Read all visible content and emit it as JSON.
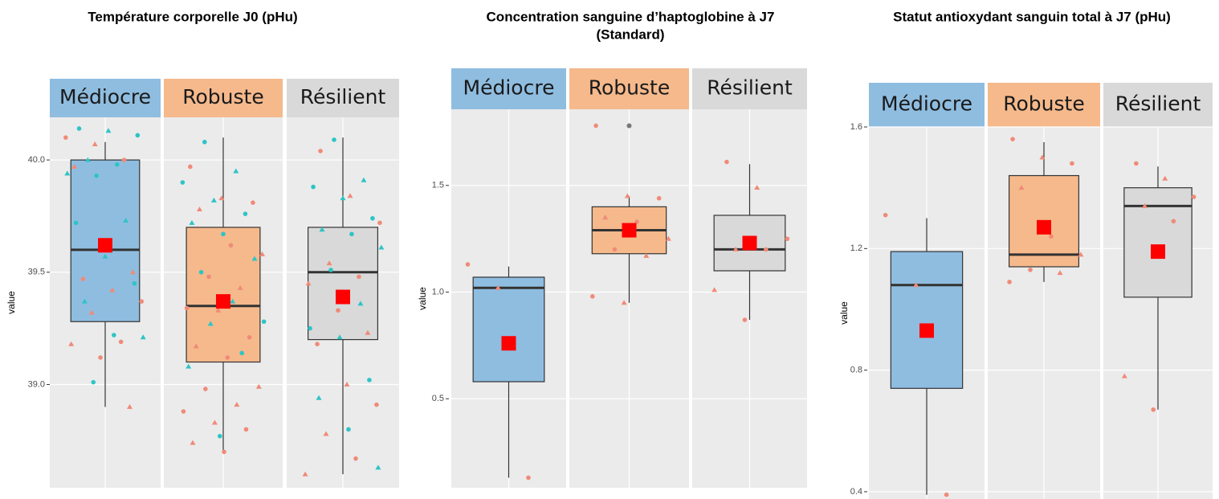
{
  "chart_data": [
    {
      "type": "box",
      "title": [
        "Température corporelle J0 (pHu)"
      ],
      "ylabel": "value",
      "ylim": [
        38.54,
        40.19
      ],
      "yticks": [
        {
          "value": 39.0,
          "label": "39.0"
        },
        {
          "value": 39.5,
          "label": "39.5"
        },
        {
          "value": 40.0,
          "label": "40.0"
        }
      ],
      "grid": true,
      "point_colors": [
        "#f08a78",
        "#2ec4c6"
      ],
      "mean_color": "#ff0000",
      "groups": [
        {
          "label": "Médiocre",
          "color": "#8fbde0",
          "whisker_low": 38.9,
          "q1": 39.28,
          "median": 39.6,
          "q3": 40.0,
          "whisker_high": 40.08,
          "mean": 39.62,
          "points_a": [
            40.1,
            40.07,
            40.0,
            39.97,
            39.6,
            39.5,
            39.47,
            39.42,
            39.37,
            39.32,
            39.19,
            39.18,
            39.12,
            38.9
          ],
          "points_b": [
            40.14,
            40.13,
            40.11,
            40.0,
            39.98,
            39.94,
            39.93,
            39.73,
            39.72,
            39.57,
            39.45,
            39.37,
            39.22,
            39.21,
            39.01
          ]
        },
        {
          "label": "Robuste",
          "color": "#f5b98c",
          "whisker_low": 38.7,
          "q1": 39.1,
          "median": 39.35,
          "q3": 39.7,
          "whisker_high": 40.1,
          "mean": 39.37,
          "points_a": [
            39.97,
            39.83,
            39.81,
            39.78,
            39.62,
            39.58,
            39.48,
            39.43,
            39.34,
            39.33,
            39.21,
            39.17,
            39.12,
            38.99,
            38.98,
            38.91,
            38.88,
            38.83,
            38.8,
            38.74,
            38.7
          ],
          "points_b": [
            40.08,
            39.95,
            39.9,
            39.82,
            39.76,
            39.72,
            39.67,
            39.56,
            39.5,
            39.37,
            39.28,
            39.27,
            39.14,
            39.08,
            38.77
          ]
        },
        {
          "label": "Résilient",
          "color": "#d9d9d9",
          "whisker_low": 38.6,
          "q1": 39.2,
          "median": 39.5,
          "q3": 39.7,
          "whisker_high": 40.1,
          "mean": 39.39,
          "points_a": [
            40.04,
            39.84,
            39.72,
            39.54,
            39.48,
            39.45,
            39.33,
            39.23,
            39.18,
            39.0,
            38.91,
            38.78,
            38.67,
            38.6
          ],
          "points_b": [
            40.09,
            39.91,
            39.88,
            39.83,
            39.74,
            39.69,
            39.67,
            39.61,
            39.51,
            39.36,
            39.25,
            39.21,
            39.02,
            38.94,
            38.8,
            38.63
          ]
        }
      ]
    },
    {
      "type": "box",
      "title": [
        "Concentration sanguine d’haptoglobine à J7",
        "(Standard)"
      ],
      "ylabel": "value",
      "ylim": [
        0.083,
        1.857
      ],
      "yticks": [
        0.5,
        {
          "value": 1.0,
          "label": "1.0"
        },
        1.5
      ],
      "grid": true,
      "point_colors": [
        "#f08a78",
        "#2ec4c6"
      ],
      "mean_color": "#ff0000",
      "outlier_color": "#777777",
      "groups": [
        {
          "label": "Médiocre",
          "color": "#8fbde0",
          "whisker_low": 0.13,
          "q1": 0.58,
          "median": 1.02,
          "q3": 1.07,
          "whisker_high": 1.12,
          "mean": 0.76,
          "points_a": [
            1.13,
            1.02,
            0.13
          ],
          "points_b": []
        },
        {
          "label": "Robuste",
          "color": "#f5b98c",
          "whisker_low": 0.95,
          "q1": 1.18,
          "median": 1.29,
          "q3": 1.4,
          "whisker_high": 1.45,
          "mean": 1.29,
          "points_a": [
            1.78,
            1.45,
            1.44,
            1.35,
            1.33,
            1.25,
            1.2,
            1.17,
            0.98,
            0.95
          ],
          "points_b": [],
          "outliers": [
            1.78
          ]
        },
        {
          "label": "Résilient",
          "color": "#d9d9d9",
          "whisker_low": 0.87,
          "q1": 1.1,
          "median": 1.2,
          "q3": 1.36,
          "whisker_high": 1.6,
          "mean": 1.23,
          "points_a": [
            1.61,
            1.49,
            1.25,
            1.2,
            1.2,
            1.01,
            0.87
          ],
          "points_b": []
        }
      ]
    },
    {
      "type": "box",
      "title": [
        "Statut antioxydant sanguin total à J7 (pHu)"
      ],
      "ylabel": "value",
      "ylim": [
        0.376,
        1.6
      ],
      "yticks": [
        0.4,
        0.8,
        1.2,
        1.6
      ],
      "grid": true,
      "point_colors": [
        "#f08a78",
        "#2ec4c6"
      ],
      "mean_color": "#ff0000",
      "groups": [
        {
          "label": "Médiocre",
          "color": "#8fbde0",
          "whisker_low": 0.39,
          "q1": 0.74,
          "median": 1.08,
          "q3": 1.19,
          "whisker_high": 1.3,
          "mean": 0.93,
          "points_a": [
            1.31,
            1.08,
            0.39
          ],
          "points_b": []
        },
        {
          "label": "Robuste",
          "color": "#f5b98c",
          "whisker_low": 1.09,
          "q1": 1.14,
          "median": 1.18,
          "q3": 1.44,
          "whisker_high": 1.55,
          "mean": 1.27,
          "points_a": [
            1.56,
            1.5,
            1.48,
            1.4,
            1.24,
            1.18,
            1.13,
            1.12,
            1.09
          ],
          "points_b": []
        },
        {
          "label": "Résilient",
          "color": "#d9d9d9",
          "whisker_low": 0.67,
          "q1": 1.04,
          "median": 1.34,
          "q3": 1.4,
          "whisker_high": 1.47,
          "mean": 1.19,
          "points_a": [
            1.48,
            1.43,
            1.37,
            1.34,
            1.29,
            0.78,
            0.67
          ],
          "points_b": []
        }
      ]
    }
  ]
}
